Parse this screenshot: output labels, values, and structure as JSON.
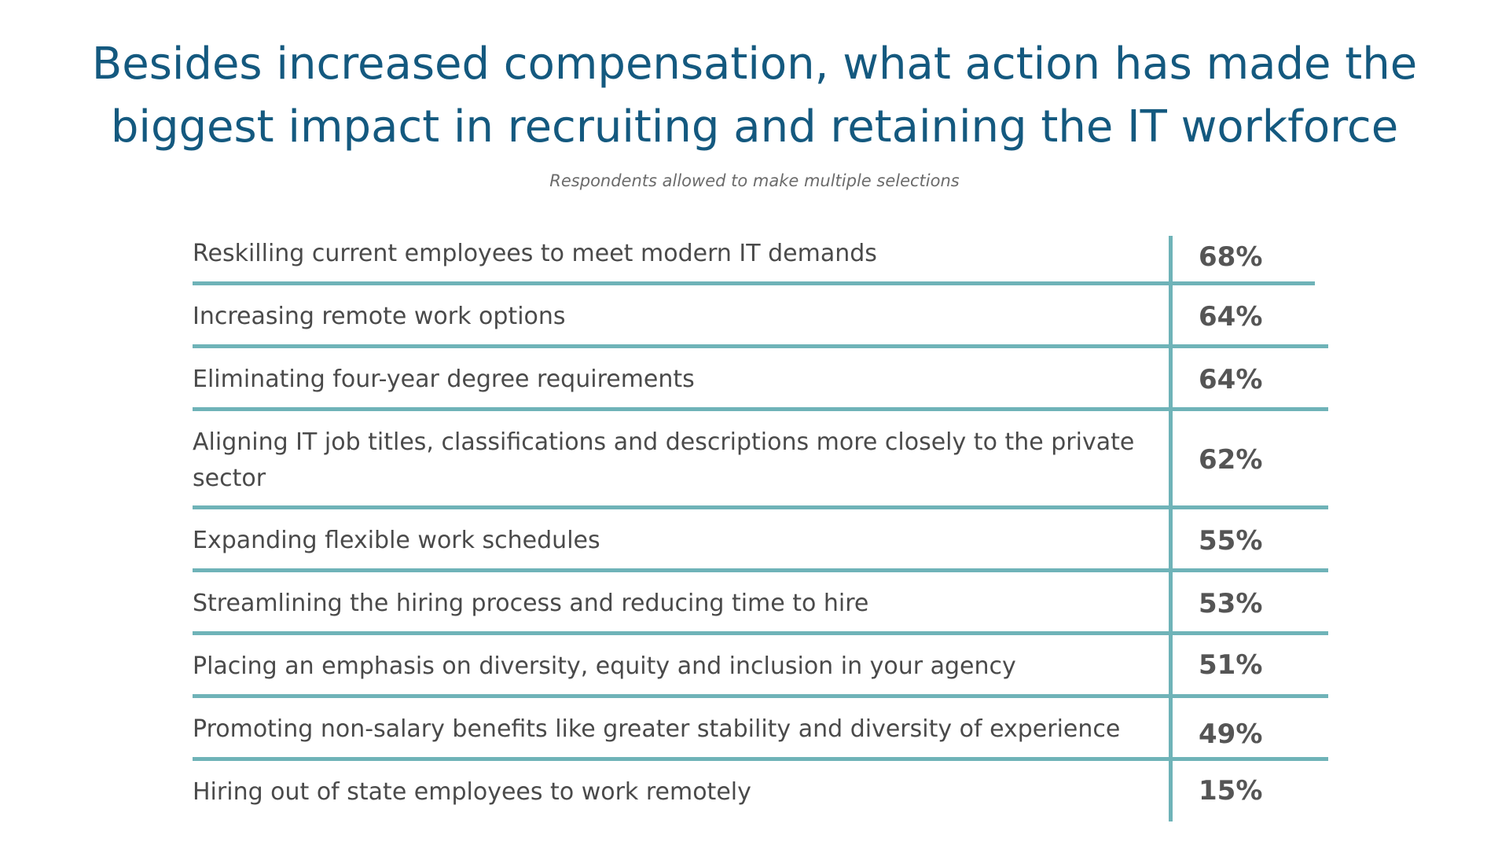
{
  "chart": {
    "title_line1": "Besides increased compensation, what action has made the",
    "title_line2": "biggest impact in recruiting and retaining the IT workforce",
    "subtitle": "Respondents allowed to make multiple selections"
  },
  "chart_data": {
    "type": "table",
    "title": "Besides increased compensation, what action has made the biggest impact in recruiting and retaining the IT workforce",
    "subtitle": "Respondents allowed to make multiple selections",
    "categories": [
      "Reskilling current employees to meet modern IT demands",
      "Increasing remote work options",
      "Eliminating four-year degree requirements",
      "Aligning IT job titles, classifications and descriptions more closely to the private sector",
      "Expanding flexible work schedules",
      "Streamlining the hiring process and reducing time to hire",
      "Placing an emphasis on diversity, equity and inclusion in your agency",
      "Promoting non-salary benefits like greater stability and diversity of experience",
      "Hiring out of state employees to work remotely"
    ],
    "values": [
      68,
      64,
      64,
      62,
      55,
      53,
      51,
      49,
      15
    ],
    "value_labels": [
      "68%",
      "64%",
      "64%",
      "62%",
      "55%",
      "53%",
      "51%",
      "49%",
      "15%"
    ],
    "colors": {
      "title": "#14597f",
      "lines": "#6fb3b8",
      "text": "#4a4a4a"
    }
  }
}
